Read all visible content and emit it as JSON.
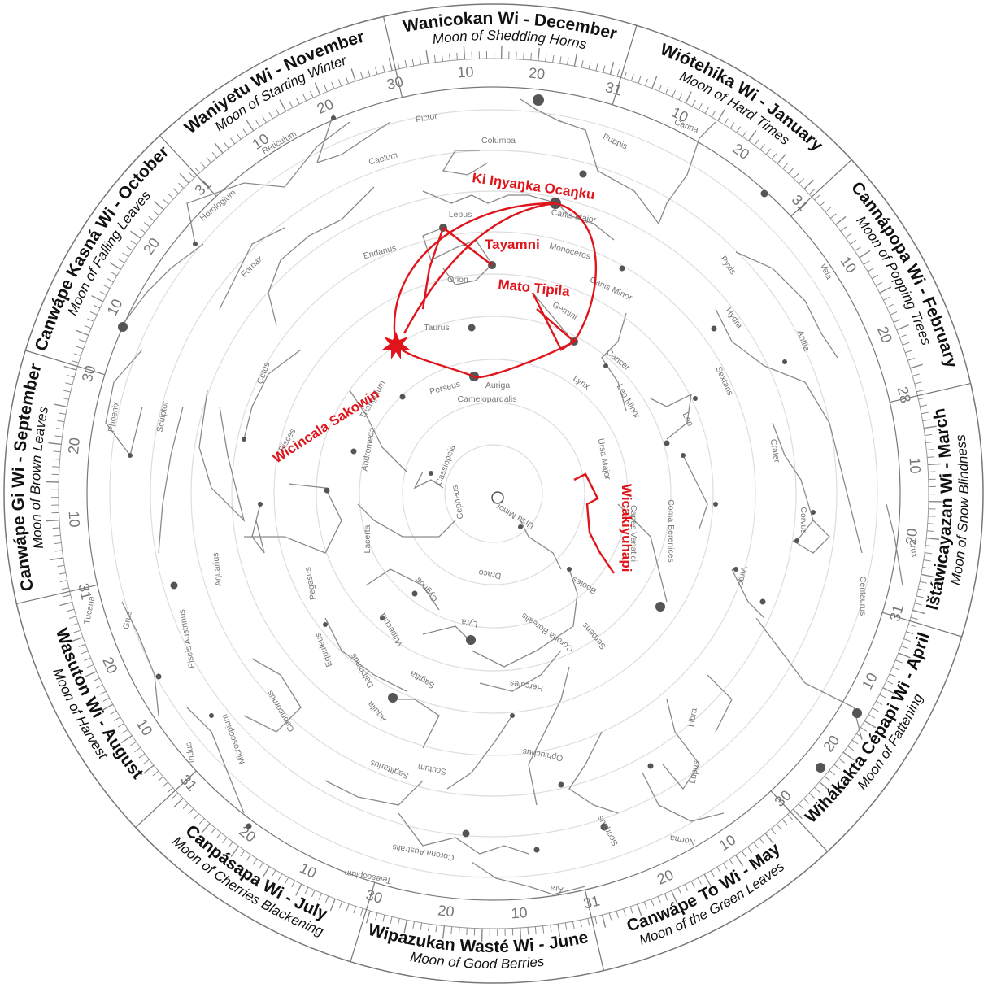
{
  "months": [
    {
      "name": "Wanicokan Wi  - December",
      "sub": "Moon of Shedding Horns",
      "days": 31
    },
    {
      "name": "Wiótehika Wi - January",
      "sub": "Moon of Hard Times",
      "days": 31
    },
    {
      "name": "Cannápopa Wi - February",
      "sub": "Moon of Popping Trees",
      "days": 28
    },
    {
      "name": "Ištáwicayazan Wi - March",
      "sub": "Moon of Snow Blindness",
      "days": 31
    },
    {
      "name": "Wihákakta Cépapi Wi - April",
      "sub": "Moon of Fattening",
      "days": 30
    },
    {
      "name": "Canwápe To Wi - May",
      "sub": "Moon of the Green Leaves",
      "days": 31
    },
    {
      "name": "Wipazukan Wasté Wi - June",
      "sub": "Moon of Good Berries",
      "days": 30
    },
    {
      "name": "Canpásapa Wi - July",
      "sub": "Moon of Cherries Blackening",
      "days": 31
    },
    {
      "name": "Wasuton Wi - August",
      "sub": "Moon of Harvest",
      "days": 31
    },
    {
      "name": "Canwápe Gi Wi - September",
      "sub": "Moon of Brown Leaves",
      "days": 30
    },
    {
      "name": "Canwápe Kasná Wi - October",
      "sub": "Moon of Falling Leaves",
      "days": 31
    },
    {
      "name": "Waniyetu Wi - November",
      "sub": "Moon of Starting Winter",
      "days": 30
    }
  ],
  "constellations": [
    "Pictor",
    "Columba",
    "Carina",
    "Puppis",
    "Caelum",
    "Reticulum",
    "Horologium",
    "Fornax",
    "Eridanus",
    "Lepus",
    "Canis Major",
    "Monoceros",
    "Orion",
    "Canis Minor",
    "Gemini",
    "Pyxis",
    "Vela",
    "Antlia",
    "Hydra",
    "Taurus",
    "Cancer",
    "Cetus",
    "Sextans",
    "Auriga",
    "Perseus",
    "Lynx",
    "Leo Minor",
    "Leo",
    "Crater",
    "Corvus",
    "Phoenix",
    "Sculptor",
    "Triangulum",
    "Pisces",
    "Andromeda",
    "Camelopardalis",
    "Cassiopeia",
    "Ursa Major",
    "Ursa Minor",
    "Cepheus",
    "Coma Berenices",
    "Canes Venatici",
    "Crux",
    "Centaurus",
    "Virgo",
    "Bootes",
    "Draco",
    "Lacerta",
    "Cygnus",
    "Pegasus",
    "Aquarius",
    "Tucana",
    "Grus",
    "Piscis Austrinus",
    "Equuleus",
    "Delphinus",
    "Vulpecula",
    "Lyra",
    "Corona Borealis",
    "Serpens",
    "Sagitta",
    "Hercules",
    "Aquila",
    "Capricornus",
    "Libra",
    "Ophiuchus",
    "Lupus",
    "Microscopium",
    "Indus",
    "Scutum",
    "Sagittarius",
    "Scorpius",
    "Norma",
    "Corona Australis",
    "Telescopium",
    "Ara"
  ],
  "lakota": {
    "ki_inyanka": "Ki Iŋyaŋka Ocaŋku",
    "tayamni": "Tayamni",
    "mato_tipila": "Mato Tipila",
    "wicincala": "Wicincala Sakowin",
    "wicakiyuhapi": "Wicakiyuhapi"
  },
  "colors": {
    "highlight": "#e0141b",
    "lines": "#8a8a8a",
    "stars": "#555555",
    "rings": "#dddddd"
  }
}
